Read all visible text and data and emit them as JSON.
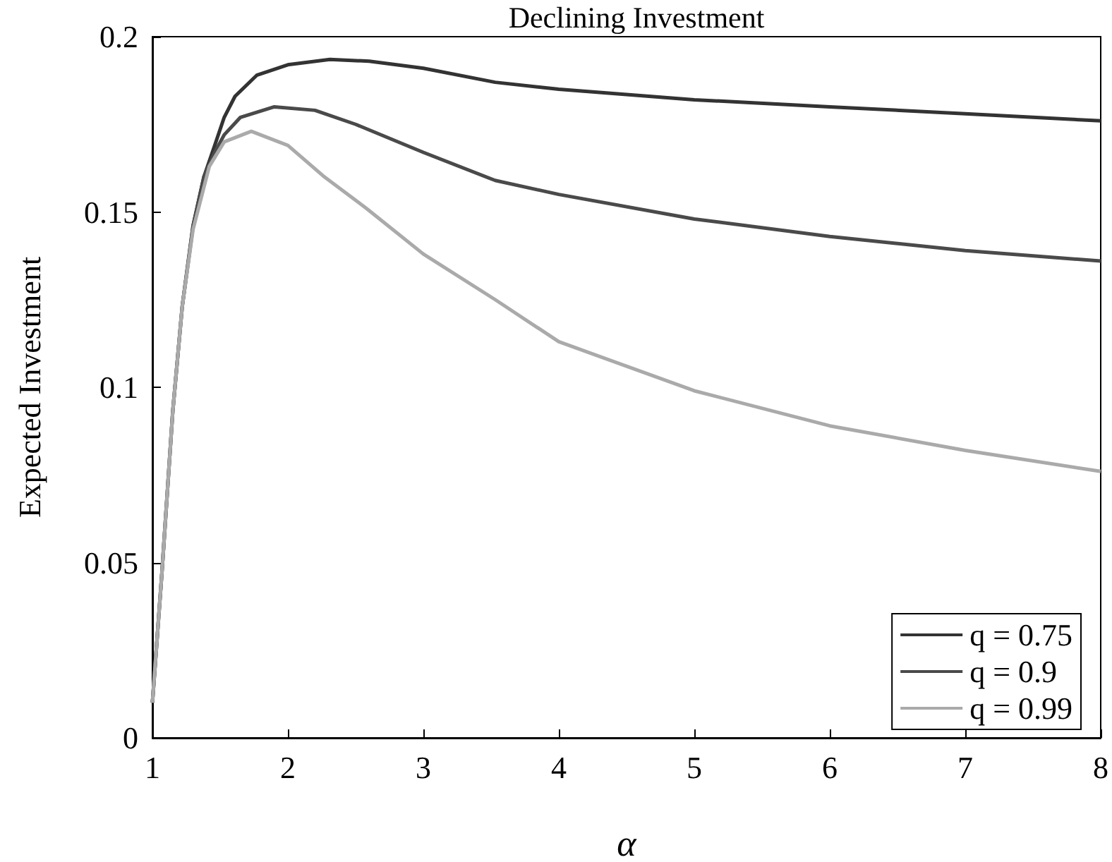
{
  "chart_data": {
    "type": "line",
    "title": "Declining Investment",
    "xlabel": "α",
    "ylabel": "Expected Investment",
    "xlim": [
      1,
      8
    ],
    "xticks": [
      1,
      2,
      3,
      4,
      5,
      6,
      7,
      8
    ],
    "ylim": [
      0,
      0.2
    ],
    "yticks": [
      0,
      0.05,
      0.1,
      0.15,
      0.2
    ],
    "grid": false,
    "legend": "bottom right",
    "marker": "none",
    "line_style": "solid",
    "series": [
      {
        "name": "q = 0.75",
        "color": "#333333",
        "x": [
          1,
          1.07,
          1.15,
          1.22,
          1.3,
          1.38,
          1.46,
          1.53,
          1.61,
          1.77,
          2,
          2.31,
          2.6,
          3,
          3.53,
          4,
          5,
          6,
          7,
          8
        ],
        "values": [
          0.01,
          0.047,
          0.093,
          0.123,
          0.146,
          0.16,
          0.169,
          0.177,
          0.183,
          0.189,
          0.192,
          0.1935,
          0.193,
          0.191,
          0.187,
          0.185,
          0.182,
          0.18,
          0.178,
          0.176
        ]
      },
      {
        "name": "q = 0.9",
        "color": "#4a4a4a",
        "x": [
          1,
          1.07,
          1.15,
          1.22,
          1.3,
          1.38,
          1.46,
          1.53,
          1.65,
          1.9,
          2.2,
          2.5,
          3,
          3.53,
          4,
          5,
          6,
          7,
          8
        ],
        "values": [
          0.01,
          0.047,
          0.093,
          0.123,
          0.146,
          0.16,
          0.167,
          0.172,
          0.177,
          0.18,
          0.179,
          0.175,
          0.167,
          0.159,
          0.155,
          0.148,
          0.143,
          0.139,
          0.136
        ]
      },
      {
        "name": "q = 0.99",
        "color": "#aaaaaa",
        "x": [
          1,
          1.07,
          1.15,
          1.22,
          1.3,
          1.42,
          1.53,
          1.73,
          2,
          2.27,
          2.58,
          3,
          3.53,
          4,
          5,
          6,
          7,
          8
        ],
        "values": [
          0.01,
          0.047,
          0.093,
          0.123,
          0.145,
          0.163,
          0.17,
          0.173,
          0.169,
          0.16,
          0.151,
          0.138,
          0.125,
          0.113,
          0.099,
          0.089,
          0.082,
          0.076
        ]
      }
    ]
  }
}
